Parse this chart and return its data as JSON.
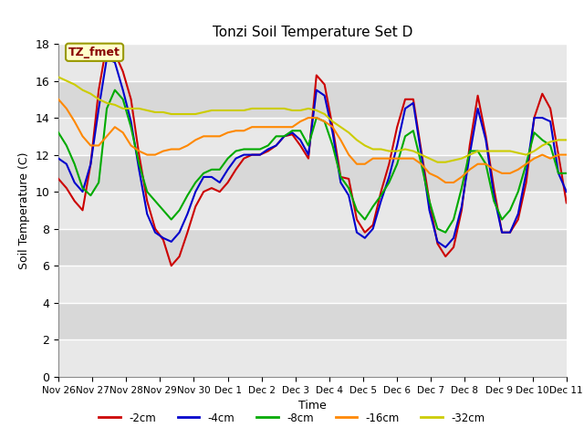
{
  "title": "Tonzi Soil Temperature Set D",
  "xlabel": "Time",
  "ylabel": "Soil Temperature (C)",
  "ylim": [
    0,
    18
  ],
  "yticks": [
    0,
    2,
    4,
    6,
    8,
    10,
    12,
    14,
    16,
    18
  ],
  "bg_color": "#ffffff",
  "band_colors": [
    "#e8e8e8",
    "#d8d8d8"
  ],
  "series": {
    "neg2cm": {
      "label": "-2cm",
      "color": "#cc0000",
      "lw": 1.5
    },
    "neg4cm": {
      "label": "-4cm",
      "color": "#0000cc",
      "lw": 1.5
    },
    "neg8cm": {
      "label": "-8cm",
      "color": "#00aa00",
      "lw": 1.5
    },
    "neg16cm": {
      "label": "-16cm",
      "color": "#ff8800",
      "lw": 1.5
    },
    "neg32cm": {
      "label": "-32cm",
      "color": "#cccc00",
      "lw": 1.5
    }
  },
  "x_tick_labels": [
    "Nov 26",
    "Nov 27",
    "Nov 28",
    "Nov 29",
    "Nov 30",
    "Dec 1",
    "Dec 2",
    "Dec 3",
    "Dec 4",
    "Dec 5",
    "Dec 6",
    "Dec 7",
    "Dec 8",
    "Dec 9",
    "Dec 10",
    "Dec 11"
  ],
  "x_ticks": [
    0,
    4,
    8,
    12,
    16,
    20,
    24,
    28,
    32,
    36,
    40,
    44,
    48,
    52,
    56,
    60
  ],
  "annotation_text": "TZ_fmet",
  "neg2cm": [
    10.7,
    10.2,
    9.5,
    9.0,
    11.5,
    15.5,
    18.0,
    17.5,
    16.5,
    15.0,
    12.0,
    9.5,
    8.0,
    7.4,
    6.0,
    6.5,
    7.8,
    9.2,
    10.0,
    10.2,
    10.0,
    10.5,
    11.2,
    11.8,
    12.0,
    12.0,
    12.2,
    12.5,
    13.0,
    13.1,
    12.5,
    11.8,
    16.3,
    15.8,
    13.5,
    10.8,
    10.7,
    8.5,
    7.8,
    8.2,
    10.0,
    11.5,
    13.5,
    15.0,
    15.0,
    12.2,
    9.5,
    7.2,
    6.5,
    7.0,
    9.0,
    12.5,
    15.2,
    13.0,
    10.2,
    7.8,
    7.8,
    8.5,
    10.5,
    14.0,
    15.3,
    14.5,
    12.0,
    9.4
  ],
  "neg4cm": [
    11.8,
    11.5,
    10.5,
    10.0,
    11.5,
    14.5,
    17.2,
    17.0,
    15.5,
    13.8,
    11.2,
    8.8,
    7.8,
    7.5,
    7.3,
    7.8,
    8.8,
    10.0,
    10.8,
    10.8,
    10.5,
    11.2,
    11.8,
    12.0,
    12.0,
    12.0,
    12.3,
    12.5,
    13.0,
    13.2,
    12.8,
    12.0,
    15.5,
    15.2,
    13.2,
    10.5,
    9.8,
    7.8,
    7.5,
    8.0,
    9.5,
    10.8,
    12.5,
    14.5,
    14.8,
    12.0,
    9.0,
    7.3,
    7.0,
    7.5,
    9.2,
    12.0,
    14.5,
    12.8,
    9.8,
    7.8,
    7.8,
    8.8,
    11.0,
    14.0,
    14.0,
    13.8,
    11.0,
    10.0
  ],
  "neg8cm": [
    13.2,
    12.5,
    11.5,
    10.2,
    9.8,
    10.5,
    14.5,
    15.5,
    15.0,
    13.5,
    11.5,
    10.0,
    9.5,
    9.0,
    8.5,
    9.0,
    9.8,
    10.5,
    11.0,
    11.2,
    11.2,
    11.8,
    12.2,
    12.3,
    12.3,
    12.3,
    12.5,
    13.0,
    13.0,
    13.3,
    13.3,
    12.5,
    14.0,
    13.8,
    12.5,
    10.8,
    10.2,
    9.0,
    8.5,
    9.2,
    9.8,
    10.5,
    11.5,
    13.0,
    13.3,
    11.5,
    9.5,
    8.0,
    7.8,
    8.5,
    10.2,
    12.2,
    12.2,
    11.5,
    9.5,
    8.5,
    9.0,
    10.0,
    11.5,
    13.2,
    12.8,
    12.5,
    11.0,
    11.0
  ],
  "neg16cm": [
    15.0,
    14.5,
    13.8,
    13.0,
    12.5,
    12.5,
    13.0,
    13.5,
    13.2,
    12.5,
    12.2,
    12.0,
    12.0,
    12.2,
    12.3,
    12.3,
    12.5,
    12.8,
    13.0,
    13.0,
    13.0,
    13.2,
    13.3,
    13.3,
    13.5,
    13.5,
    13.5,
    13.5,
    13.5,
    13.5,
    13.8,
    14.0,
    14.0,
    13.8,
    13.5,
    12.8,
    12.0,
    11.5,
    11.5,
    11.8,
    11.8,
    11.8,
    11.8,
    11.8,
    11.8,
    11.5,
    11.0,
    10.8,
    10.5,
    10.5,
    10.8,
    11.2,
    11.5,
    11.5,
    11.2,
    11.0,
    11.0,
    11.2,
    11.5,
    11.8,
    12.0,
    11.8,
    12.0,
    12.0
  ],
  "neg32cm": [
    16.2,
    16.0,
    15.8,
    15.5,
    15.3,
    15.0,
    14.8,
    14.7,
    14.5,
    14.5,
    14.5,
    14.4,
    14.3,
    14.3,
    14.2,
    14.2,
    14.2,
    14.2,
    14.3,
    14.4,
    14.4,
    14.4,
    14.4,
    14.4,
    14.5,
    14.5,
    14.5,
    14.5,
    14.5,
    14.4,
    14.4,
    14.5,
    14.4,
    14.2,
    13.8,
    13.5,
    13.2,
    12.8,
    12.5,
    12.3,
    12.3,
    12.2,
    12.2,
    12.3,
    12.2,
    12.0,
    11.8,
    11.6,
    11.6,
    11.7,
    11.8,
    12.0,
    12.2,
    12.2,
    12.2,
    12.2,
    12.2,
    12.1,
    12.0,
    12.2,
    12.5,
    12.7,
    12.8,
    12.8
  ]
}
